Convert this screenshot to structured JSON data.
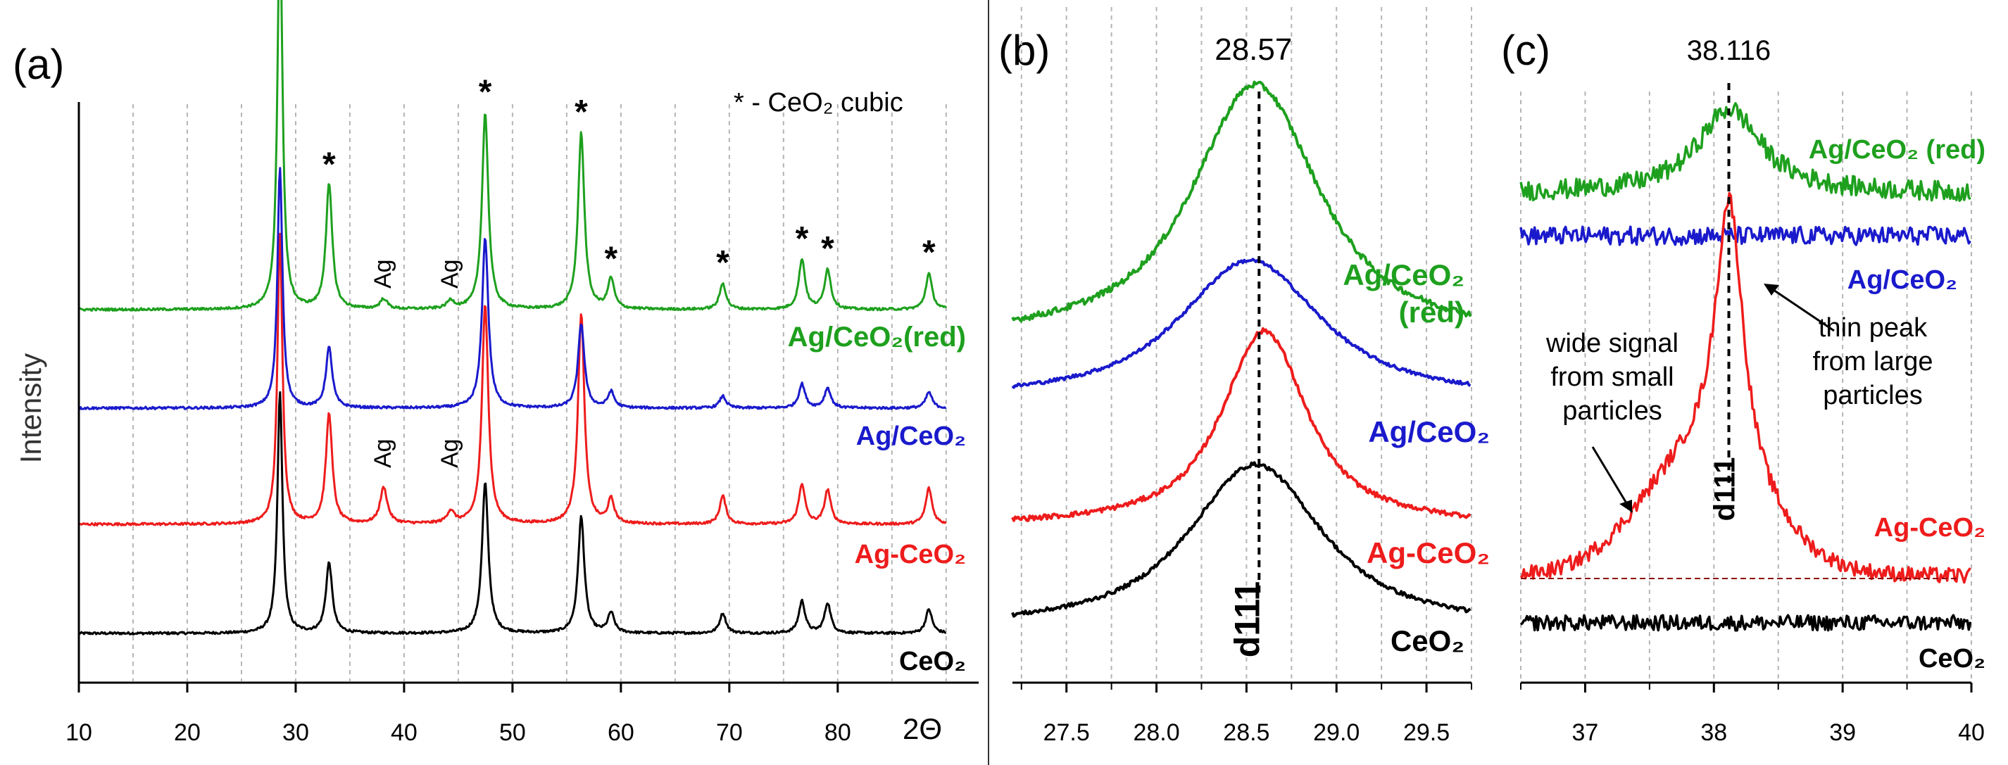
{
  "colors": {
    "green": "#1ea01e",
    "blue": "#1a1acc",
    "red": "#ee1c1c",
    "black": "#000000",
    "grid": "#b5b5b5",
    "axis": "#000000",
    "dashed_red": "#8b0000"
  },
  "chart_data": [
    {
      "type": "line",
      "panel": "(a)",
      "title": "",
      "xlabel": "2Θ",
      "ylabel": "Intensity",
      "xlim": [
        10,
        93
      ],
      "xticks": [
        10,
        20,
        30,
        40,
        50,
        60,
        70,
        80
      ],
      "grid": true,
      "legend_note": "* - CeO₂ cubic",
      "cubic_peaks": [
        28.55,
        33.08,
        47.48,
        56.34,
        59.09,
        69.4,
        76.7,
        79.07,
        88.41
      ],
      "ag_peaks": [
        38.12,
        44.3
      ],
      "series": [
        {
          "name": "CeO₂",
          "label": "CeO₂",
          "color_key": "black",
          "offset": 0,
          "heights": [
            1.2,
            0.35,
            0.75,
            0.58,
            0.1,
            0.1,
            0.16,
            0.15,
            0.12
          ],
          "ag": [
            0,
            0
          ]
        },
        {
          "name": "Ag-CeO₂",
          "label": "Ag-CeO₂",
          "color_key": "red",
          "offset": 1,
          "heights": [
            1.45,
            0.55,
            1.1,
            1.05,
            0.12,
            0.14,
            0.2,
            0.17,
            0.18
          ],
          "ag": [
            0.18,
            0.06
          ]
        },
        {
          "name": "Ag/CeO₂",
          "label": "Ag/CeO₂",
          "color_key": "blue",
          "offset": 2,
          "heights": [
            1.2,
            0.3,
            0.85,
            0.42,
            0.08,
            0.06,
            0.12,
            0.1,
            0.08
          ],
          "ag": [
            0,
            0
          ]
        },
        {
          "name": "Ag/CeO₂(red)",
          "label": "Ag/CeO₂(red)",
          "color_key": "green",
          "offset": 3,
          "heights": [
            1.98,
            0.62,
            0.98,
            0.88,
            0.15,
            0.13,
            0.25,
            0.2,
            0.18
          ],
          "ag": [
            0.05,
            0.04
          ]
        }
      ]
    },
    {
      "type": "line",
      "panel": "(b)",
      "title": "",
      "xlabel": "",
      "xlim": [
        27.2,
        29.75
      ],
      "xticks": [
        "27.5",
        "28.0",
        "28.5",
        "29.0",
        "29.5"
      ],
      "marker_value": "28.57",
      "marker_x": 28.57,
      "d_label": "d111",
      "grid": true,
      "series": [
        {
          "name": "Ag/CeO₂ (red)",
          "label_line1": "Ag/CeO₂",
          "label_line2": "(red)",
          "color_key": "green",
          "center": 28.55,
          "fwhm": 0.9,
          "height": 1.0
        },
        {
          "name": "Ag/CeO₂",
          "label": "Ag/CeO₂",
          "color_key": "blue",
          "center": 28.52,
          "fwhm": 1.0,
          "height": 1.0
        },
        {
          "name": "Ag-CeO₂",
          "label": "Ag-CeO₂",
          "color_key": "red",
          "center": 28.6,
          "fwhm": 0.6,
          "height": 1.0
        },
        {
          "name": "CeO₂",
          "label": "CeO₂",
          "color_key": "black",
          "center": 28.55,
          "fwhm": 0.95,
          "height": 1.0
        }
      ]
    },
    {
      "type": "line",
      "panel": "(c)",
      "title": "",
      "xlabel": "",
      "xlim": [
        36.5,
        40
      ],
      "xticks": [
        "37",
        "38",
        "39",
        "40"
      ],
      "marker_value": "38.116",
      "marker_x": 38.116,
      "d_label": "d111",
      "grid": true,
      "annotations": {
        "wide": [
          "wide signal",
          "from small",
          "particles"
        ],
        "thin": [
          "thin peak",
          "from large",
          "particles"
        ]
      },
      "series": [
        {
          "name": "Ag/CeO₂ (red)",
          "label": "Ag/CeO₂ (red)",
          "color_key": "green"
        },
        {
          "name": "Ag/CeO₂",
          "label": "Ag/CeO₂",
          "color_key": "blue"
        },
        {
          "name": "Ag-CeO₂",
          "label": "Ag-CeO₂",
          "color_key": "red"
        },
        {
          "name": "CeO₂",
          "label": "CeO₂",
          "color_key": "black"
        }
      ]
    }
  ]
}
